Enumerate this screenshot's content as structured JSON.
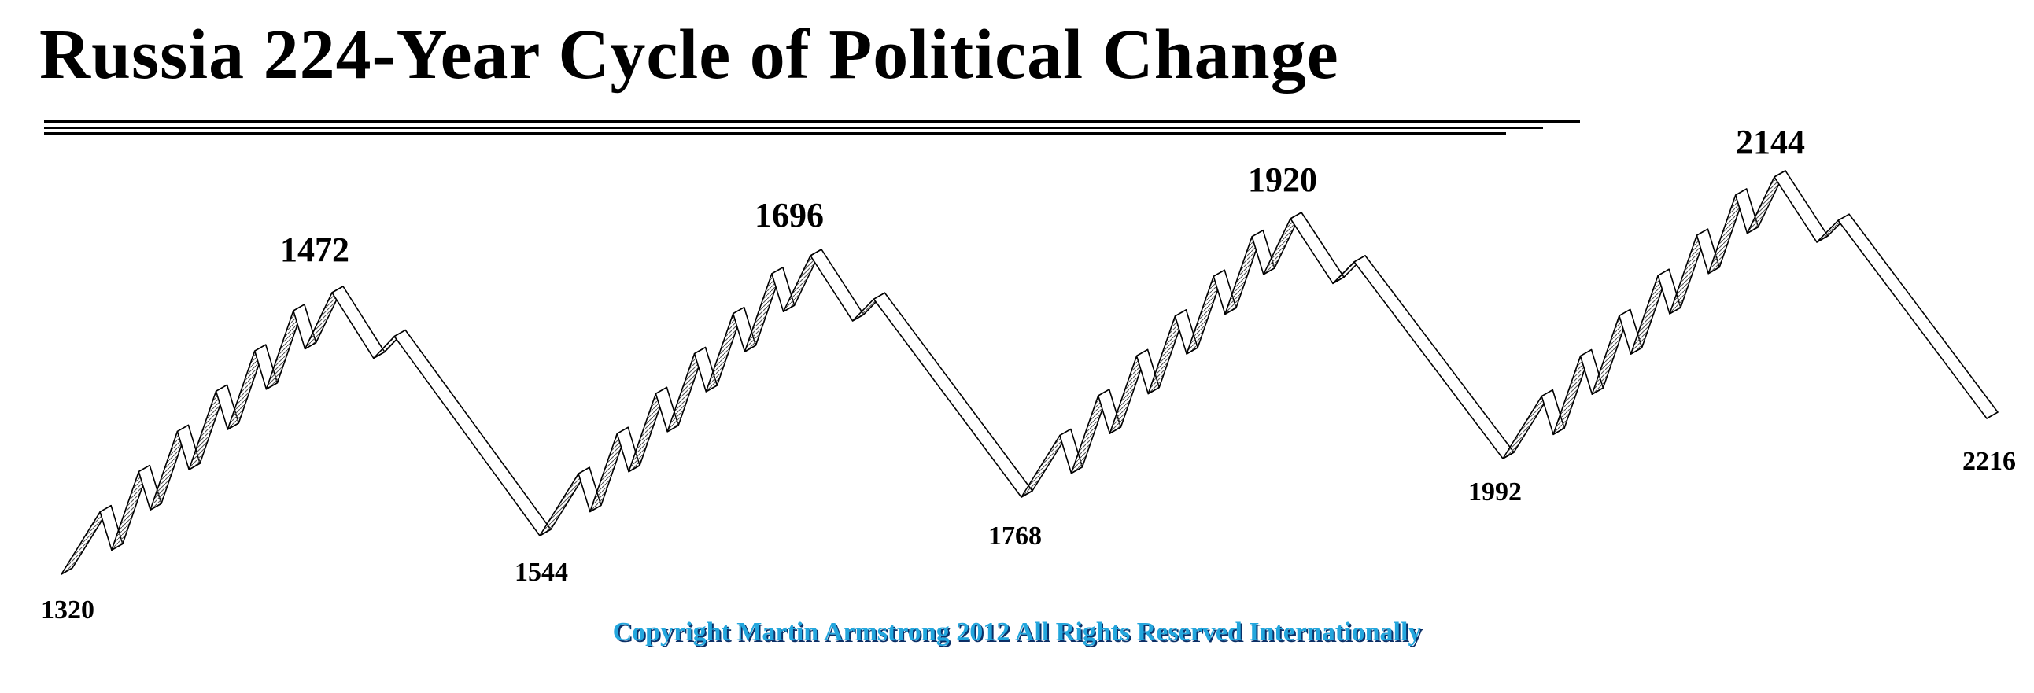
{
  "title": "Russia 224-Year Cycle of Political Change",
  "copyright": "Copyright Martin Armstrong 2012 All Rights Reserved Internationally",
  "colors": {
    "line": "#000000",
    "shade": "#555555",
    "copyright": "#23a6dd",
    "copyright_shadow": "#0b2f66"
  },
  "chart_data": {
    "type": "line",
    "title": "Russia 224-Year Cycle of Political Change",
    "xlabel": "",
    "ylabel": "",
    "grid": false,
    "legend": "none",
    "labeled_turning_points": [
      {
        "year": 1320,
        "label": "1320",
        "kind": "low"
      },
      {
        "year": 1472,
        "label": "1472",
        "kind": "high"
      },
      {
        "year": 1544,
        "label": "1544",
        "kind": "low"
      },
      {
        "year": 1696,
        "label": "1696",
        "kind": "high"
      },
      {
        "year": 1768,
        "label": "1768",
        "kind": "low"
      },
      {
        "year": 1920,
        "label": "1920",
        "kind": "high"
      },
      {
        "year": 1992,
        "label": "1992",
        "kind": "low"
      },
      {
        "year": 2144,
        "label": "2144",
        "kind": "high"
      },
      {
        "year": 2216,
        "label": "2216",
        "kind": "low"
      }
    ]
  }
}
